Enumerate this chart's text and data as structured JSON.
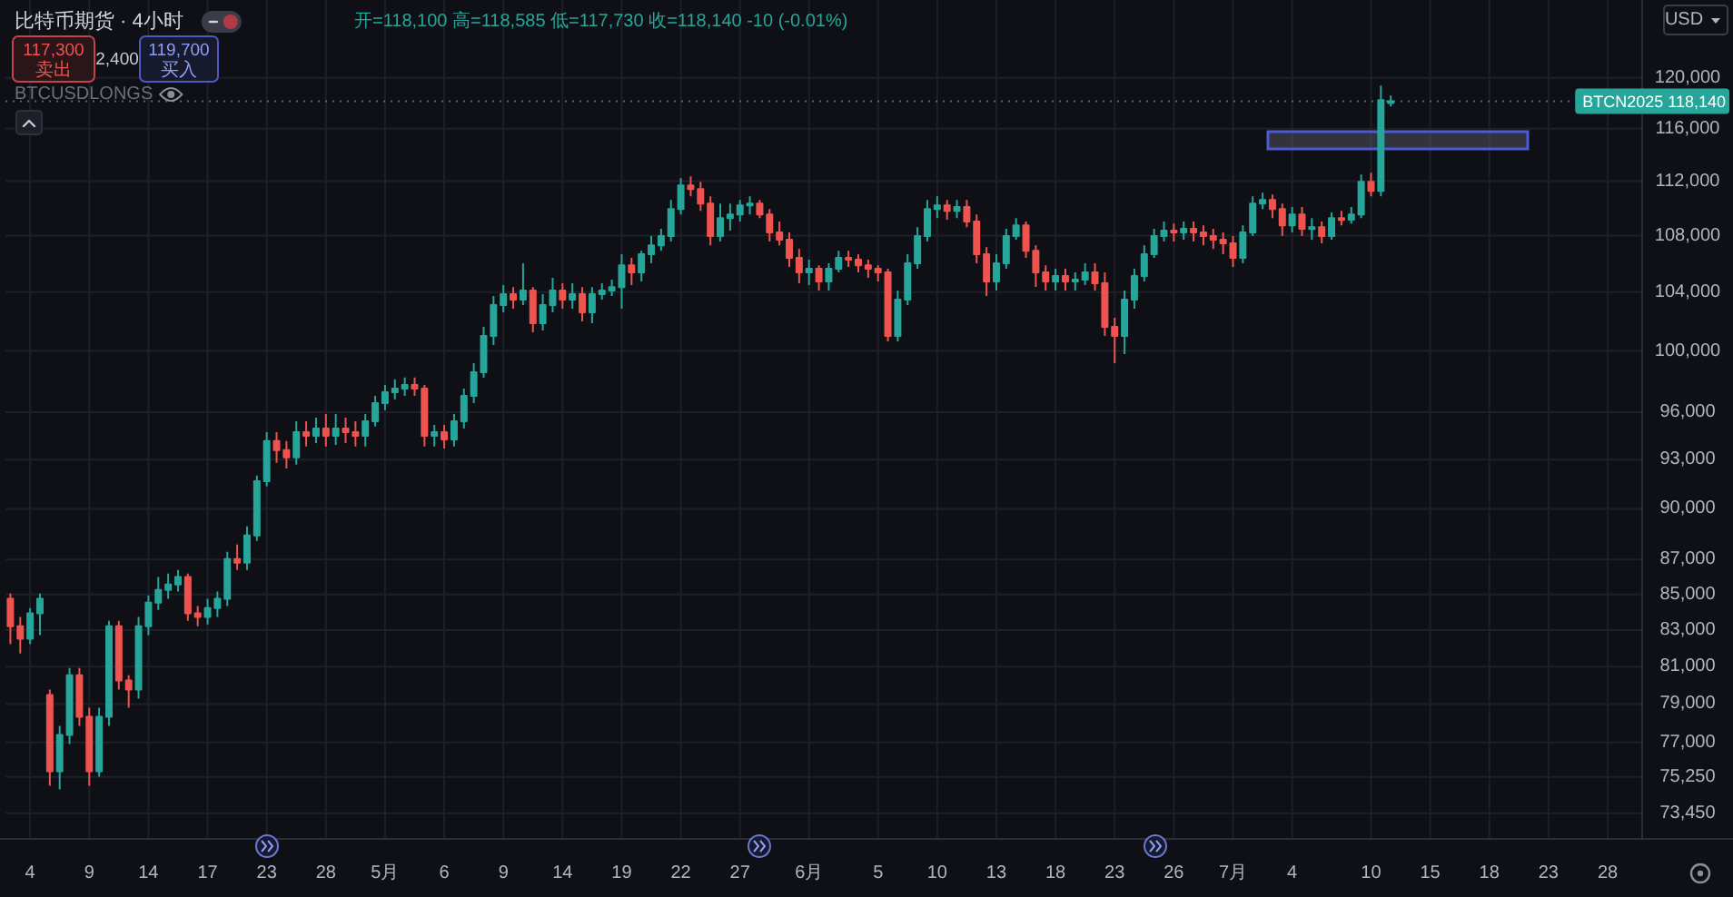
{
  "chart_data": {
    "type": "candlestick",
    "title": "比特币期货 · 4小时",
    "categories": [
      null,
      null,
      "4",
      null,
      null,
      null,
      null,
      null,
      "9",
      null,
      null,
      null,
      null,
      null,
      "14",
      null,
      null,
      null,
      null,
      null,
      "17",
      null,
      null,
      null,
      null,
      null,
      "23",
      null,
      null,
      null,
      null,
      null,
      "28",
      null,
      null,
      null,
      null,
      null,
      "5月",
      null,
      null,
      null,
      null,
      null,
      "6",
      null,
      null,
      null,
      null,
      null,
      "9",
      null,
      null,
      null,
      null,
      null,
      "14",
      null,
      null,
      null,
      null,
      null,
      "19",
      null,
      null,
      null,
      null,
      null,
      "22",
      null,
      null,
      null,
      null,
      null,
      "27",
      null,
      null,
      null,
      null,
      null,
      null,
      "6月",
      null,
      null,
      null,
      null,
      null,
      null,
      "5",
      null,
      null,
      null,
      null,
      null,
      "10",
      null,
      null,
      null,
      null,
      null,
      "13",
      null,
      null,
      null,
      null,
      null,
      "18",
      null,
      null,
      null,
      null,
      null,
      "23",
      null,
      null,
      null,
      null,
      null,
      "26",
      null,
      null,
      null,
      null,
      null,
      "7月",
      null,
      null,
      null,
      null,
      null,
      "4",
      null,
      null,
      null,
      null,
      null,
      null,
      null,
      "10",
      null,
      null,
      null,
      null,
      null,
      "15",
      null,
      null,
      null,
      null,
      null,
      "18",
      null,
      null,
      null,
      null,
      null,
      "23",
      null,
      null,
      null,
      null,
      null,
      "28",
      null,
      null,
      null
    ],
    "ohlc": [
      [
        84750,
        85050,
        82220,
        83220
      ],
      [
        83220,
        83730,
        81720,
        82520
      ],
      [
        82520,
        84230,
        82220,
        83930
      ],
      [
        83930,
        85050,
        82720,
        84750
      ],
      [
        79480,
        79770,
        74810,
        75540
      ],
      [
        75540,
        77860,
        74630,
        77390
      ],
      [
        77390,
        80930,
        76920,
        80540
      ],
      [
        80540,
        80930,
        77860,
        78330
      ],
      [
        78330,
        78810,
        74810,
        75540
      ],
      [
        75540,
        78810,
        75260,
        78330
      ],
      [
        78330,
        83520,
        77860,
        83220
      ],
      [
        83220,
        83520,
        79770,
        80250
      ],
      [
        80250,
        80540,
        78810,
        79770
      ],
      [
        79770,
        83730,
        79290,
        83220
      ],
      [
        83220,
        84950,
        82720,
        84540
      ],
      [
        84540,
        85990,
        84130,
        85260
      ],
      [
        85260,
        86190,
        84750,
        85570
      ],
      [
        85570,
        86400,
        85160,
        85990
      ],
      [
        85990,
        86190,
        83520,
        83930
      ],
      [
        83930,
        84340,
        83220,
        83730
      ],
      [
        83730,
        84750,
        83320,
        84230
      ],
      [
        84230,
        85160,
        83730,
        84750
      ],
      [
        84750,
        87460,
        84340,
        87030
      ],
      [
        87030,
        87880,
        86400,
        86820
      ],
      [
        86820,
        88950,
        86400,
        88410
      ],
      [
        88410,
        92020,
        88090,
        91680
      ],
      [
        91680,
        94730,
        91350,
        94160
      ],
      [
        94160,
        94730,
        92800,
        93590
      ],
      [
        93590,
        94160,
        92460,
        93140
      ],
      [
        93140,
        95420,
        92690,
        94730
      ],
      [
        94730,
        95420,
        93820,
        94500
      ],
      [
        94500,
        95650,
        94040,
        94960
      ],
      [
        94960,
        95880,
        93820,
        94500
      ],
      [
        94500,
        95880,
        93930,
        94960
      ],
      [
        94960,
        95650,
        94040,
        94730
      ],
      [
        94730,
        95420,
        93820,
        94500
      ],
      [
        94500,
        95880,
        93820,
        95420
      ],
      [
        95420,
        97050,
        95080,
        96580
      ],
      [
        96580,
        97760,
        96120,
        97290
      ],
      [
        97290,
        98120,
        96820,
        97520
      ],
      [
        97520,
        98240,
        97050,
        97760
      ],
      [
        97760,
        98240,
        97050,
        97520
      ],
      [
        97520,
        97760,
        93820,
        94500
      ],
      [
        94500,
        95190,
        93820,
        94730
      ],
      [
        94730,
        95190,
        93700,
        94270
      ],
      [
        94270,
        95880,
        93820,
        95420
      ],
      [
        95420,
        97520,
        94960,
        97050
      ],
      [
        97050,
        99190,
        96580,
        98590
      ],
      [
        98590,
        101620,
        98230,
        101010
      ],
      [
        101010,
        103740,
        100400,
        103110
      ],
      [
        103110,
        104490,
        102610,
        103860
      ],
      [
        103860,
        104360,
        102860,
        103490
      ],
      [
        103490,
        106020,
        103110,
        104110
      ],
      [
        104110,
        104360,
        101250,
        101870
      ],
      [
        101870,
        103860,
        101380,
        103110
      ],
      [
        103110,
        105000,
        102610,
        104110
      ],
      [
        104110,
        104620,
        102860,
        103490
      ],
      [
        103490,
        104620,
        102860,
        103860
      ],
      [
        103860,
        104360,
        101990,
        102610
      ],
      [
        102610,
        104360,
        101870,
        103860
      ],
      [
        103860,
        104620,
        103490,
        104110
      ],
      [
        104110,
        104870,
        103740,
        104360
      ],
      [
        104360,
        106670,
        102860,
        105890
      ],
      [
        105890,
        106410,
        104490,
        105380
      ],
      [
        105380,
        106920,
        104750,
        106670
      ],
      [
        106670,
        107970,
        106020,
        107310
      ],
      [
        107310,
        108490,
        106920,
        107970
      ],
      [
        107970,
        110610,
        107580,
        109940
      ],
      [
        109940,
        112230,
        109540,
        111690
      ],
      [
        111690,
        112370,
        110880,
        111420
      ],
      [
        111420,
        111960,
        109810,
        110340
      ],
      [
        110340,
        110880,
        107310,
        107970
      ],
      [
        107970,
        110340,
        107580,
        109280
      ],
      [
        109280,
        110340,
        108360,
        109540
      ],
      [
        109540,
        110610,
        109020,
        110210
      ],
      [
        110210,
        110880,
        109540,
        110340
      ],
      [
        110340,
        110610,
        109280,
        109540
      ],
      [
        109540,
        109940,
        107580,
        108230
      ],
      [
        108230,
        109020,
        107310,
        107710
      ],
      [
        107710,
        108230,
        105770,
        106410
      ],
      [
        106410,
        107050,
        104620,
        105380
      ],
      [
        105380,
        106280,
        104490,
        105640
      ],
      [
        105640,
        105890,
        104110,
        104750
      ],
      [
        104750,
        106020,
        104110,
        105640
      ],
      [
        105640,
        106920,
        105380,
        106410
      ],
      [
        106410,
        106920,
        105770,
        106280
      ],
      [
        106280,
        106670,
        105380,
        105890
      ],
      [
        105890,
        106280,
        105000,
        105640
      ],
      [
        105640,
        105890,
        104750,
        105380
      ],
      [
        105380,
        105640,
        100640,
        101010
      ],
      [
        101010,
        104110,
        100640,
        103490
      ],
      [
        103490,
        106670,
        103110,
        106020
      ],
      [
        106020,
        108620,
        105640,
        107970
      ],
      [
        107970,
        110610,
        107580,
        109940
      ],
      [
        109940,
        110880,
        109280,
        110210
      ],
      [
        110210,
        110610,
        109150,
        109810
      ],
      [
        109810,
        110610,
        109280,
        110080
      ],
      [
        110080,
        110610,
        108620,
        109020
      ],
      [
        109020,
        109540,
        106020,
        106670
      ],
      [
        106670,
        107180,
        103740,
        104750
      ],
      [
        104750,
        106670,
        104110,
        106020
      ],
      [
        106020,
        108490,
        105640,
        107970
      ],
      [
        107970,
        109280,
        107710,
        108750
      ],
      [
        108750,
        109020,
        106410,
        106920
      ],
      [
        106920,
        107310,
        104370,
        105380
      ],
      [
        105380,
        105890,
        104110,
        104750
      ],
      [
        104750,
        105640,
        104110,
        105130
      ],
      [
        105130,
        105640,
        104110,
        104750
      ],
      [
        104750,
        105380,
        104110,
        104870
      ],
      [
        104870,
        106020,
        104490,
        105380
      ],
      [
        105380,
        106020,
        104110,
        104620
      ],
      [
        104620,
        105380,
        101010,
        101620
      ],
      [
        101620,
        102240,
        99190,
        101010
      ],
      [
        101010,
        104110,
        99790,
        103490
      ],
      [
        103490,
        105640,
        102860,
        105130
      ],
      [
        105130,
        107310,
        104750,
        106670
      ],
      [
        106670,
        108490,
        106410,
        107970
      ],
      [
        107970,
        109020,
        107580,
        108360
      ],
      [
        108360,
        108880,
        107580,
        108230
      ],
      [
        108230,
        109020,
        107710,
        108490
      ],
      [
        108490,
        109020,
        107580,
        108230
      ],
      [
        108230,
        108750,
        107310,
        107970
      ],
      [
        107970,
        108490,
        107050,
        107710
      ],
      [
        107710,
        108230,
        106670,
        107450
      ],
      [
        107450,
        107970,
        105770,
        106410
      ],
      [
        106410,
        108750,
        106020,
        108230
      ],
      [
        108230,
        110880,
        107970,
        110340
      ],
      [
        110340,
        111150,
        109940,
        110610
      ],
      [
        110610,
        111010,
        109280,
        109940
      ],
      [
        109940,
        110340,
        107970,
        108750
      ],
      [
        108750,
        110080,
        108230,
        109540
      ],
      [
        109540,
        110080,
        107970,
        108490
      ],
      [
        108490,
        109280,
        107710,
        108620
      ],
      [
        108620,
        109020,
        107450,
        107970
      ],
      [
        107970,
        109680,
        107710,
        109280
      ],
      [
        109280,
        109810,
        108750,
        109150
      ],
      [
        109150,
        110080,
        108880,
        109540
      ],
      [
        109540,
        112500,
        109280,
        111960
      ],
      [
        111960,
        112640,
        110880,
        111280
      ],
      [
        111280,
        119380,
        110880,
        118230
      ],
      [
        118100,
        118585,
        117730,
        118140
      ],
      null,
      null,
      null,
      null,
      null,
      null,
      null,
      null,
      null,
      null,
      null,
      null,
      null,
      null,
      null,
      null,
      null,
      null,
      null,
      null,
      null,
      null,
      null,
      null,
      null
    ],
    "colors": [
      "#ef5350",
      "#ef5350",
      "#26a69a",
      "#26a69a",
      "#ef5350",
      "#26a69a",
      "#26a69a",
      "#ef5350",
      "#ef5350",
      "#26a69a",
      "#26a69a",
      "#ef5350",
      "#ef5350",
      "#26a69a",
      "#26a69a",
      "#26a69a",
      "#26a69a",
      "#26a69a",
      "#ef5350",
      "#ef5350",
      "#26a69a",
      "#26a69a",
      "#26a69a",
      "#ef5350",
      "#26a69a",
      "#26a69a",
      "#26a69a",
      "#ef5350",
      "#ef5350",
      "#26a69a",
      "#ef5350",
      "#26a69a",
      "#ef5350",
      "#26a69a",
      "#ef5350",
      "#ef5350",
      "#26a69a",
      "#26a69a",
      "#26a69a",
      "#26a69a",
      "#26a69a",
      "#ef5350",
      "#ef5350",
      "#26a69a",
      "#ef5350",
      "#26a69a",
      "#26a69a",
      "#26a69a",
      "#26a69a",
      "#26a69a",
      "#26a69a",
      "#ef5350",
      "#26a69a",
      "#ef5350",
      "#26a69a",
      "#26a69a",
      "#ef5350",
      "#26a69a",
      "#ef5350",
      "#26a69a",
      "#26a69a",
      "#26a69a",
      "#26a69a",
      "#ef5350",
      "#26a69a",
      "#26a69a",
      "#26a69a",
      "#26a69a",
      "#26a69a",
      "#ef5350",
      "#ef5350",
      "#ef5350",
      "#26a69a",
      "#26a69a",
      "#26a69a",
      "#26a69a",
      "#ef5350",
      "#ef5350",
      "#ef5350",
      "#ef5350",
      "#ef5350",
      "#26a69a",
      "#ef5350",
      "#26a69a",
      "#26a69a",
      "#ef5350",
      "#ef5350",
      "#ef5350",
      "#ef5350",
      "#ef5350",
      "#26a69a",
      "#26a69a",
      "#26a69a",
      "#26a69a",
      "#26a69a",
      "#ef5350",
      "#26a69a",
      "#ef5350",
      "#ef5350",
      "#ef5350",
      "#26a69a",
      "#26a69a",
      "#26a69a",
      "#ef5350",
      "#ef5350",
      "#ef5350",
      "#26a69a",
      "#ef5350",
      "#26a69a",
      "#26a69a",
      "#ef5350",
      "#ef5350",
      "#ef5350",
      "#26a69a",
      "#26a69a",
      "#26a69a",
      "#26a69a",
      "#26a69a",
      "#ef5350",
      "#26a69a",
      "#ef5350",
      "#ef5350",
      "#ef5350",
      "#ef5350",
      "#ef5350",
      "#26a69a",
      "#26a69a",
      "#26a69a",
      "#ef5350",
      "#ef5350",
      "#26a69a",
      "#ef5350",
      "#26a69a",
      "#ef5350",
      "#26a69a",
      "#ef5350",
      "#26a69a",
      "#26a69a",
      "#ef5350",
      "#26a69a",
      "#26a69a",
      null,
      null,
      null,
      null,
      null,
      null,
      null,
      null,
      null,
      null,
      null,
      null,
      null,
      null,
      null,
      null,
      null,
      null,
      null,
      null,
      null,
      null,
      null,
      null,
      null
    ],
    "ylim": [
      72200,
      126400
    ],
    "yticks": [
      {
        "value": 73450,
        "label": "73,450"
      },
      {
        "value": 75250,
        "label": "75,250"
      },
      {
        "value": 77000,
        "label": "77,000"
      },
      {
        "value": 79000,
        "label": "79,000"
      },
      {
        "value": 81000,
        "label": "81,000"
      },
      {
        "value": 83000,
        "label": "83,000"
      },
      {
        "value": 85000,
        "label": "85,000"
      },
      {
        "value": 87000,
        "label": "87,000"
      },
      {
        "value": 90000,
        "label": "90,000"
      },
      {
        "value": 93000,
        "label": "93,000"
      },
      {
        "value": 96000,
        "label": "96,000"
      },
      {
        "value": 100000,
        "label": "100,000"
      },
      {
        "value": 104000,
        "label": "104,000"
      },
      {
        "value": 108000,
        "label": "108,000"
      },
      {
        "value": 112000,
        "label": "112,000"
      },
      {
        "value": 116000,
        "label": "116,000"
      },
      {
        "value": 120000,
        "label": "120,000"
      }
    ],
    "log": "y",
    "grid": true,
    "ref_lines": [
      {
        "axis": "y",
        "value": 118140,
        "label": "BTCN2025 118,140",
        "color": "#26a69a",
        "line_style": "dotted"
      }
    ],
    "annotations": [
      "开=118,100 高=118,585 低=117,730 收=118,140 -10 (-0.01%)",
      "117,300",
      "卖出",
      "2,400",
      "119,700",
      "买入",
      "BTCUSDLONGS",
      "USD"
    ]
  }
}
